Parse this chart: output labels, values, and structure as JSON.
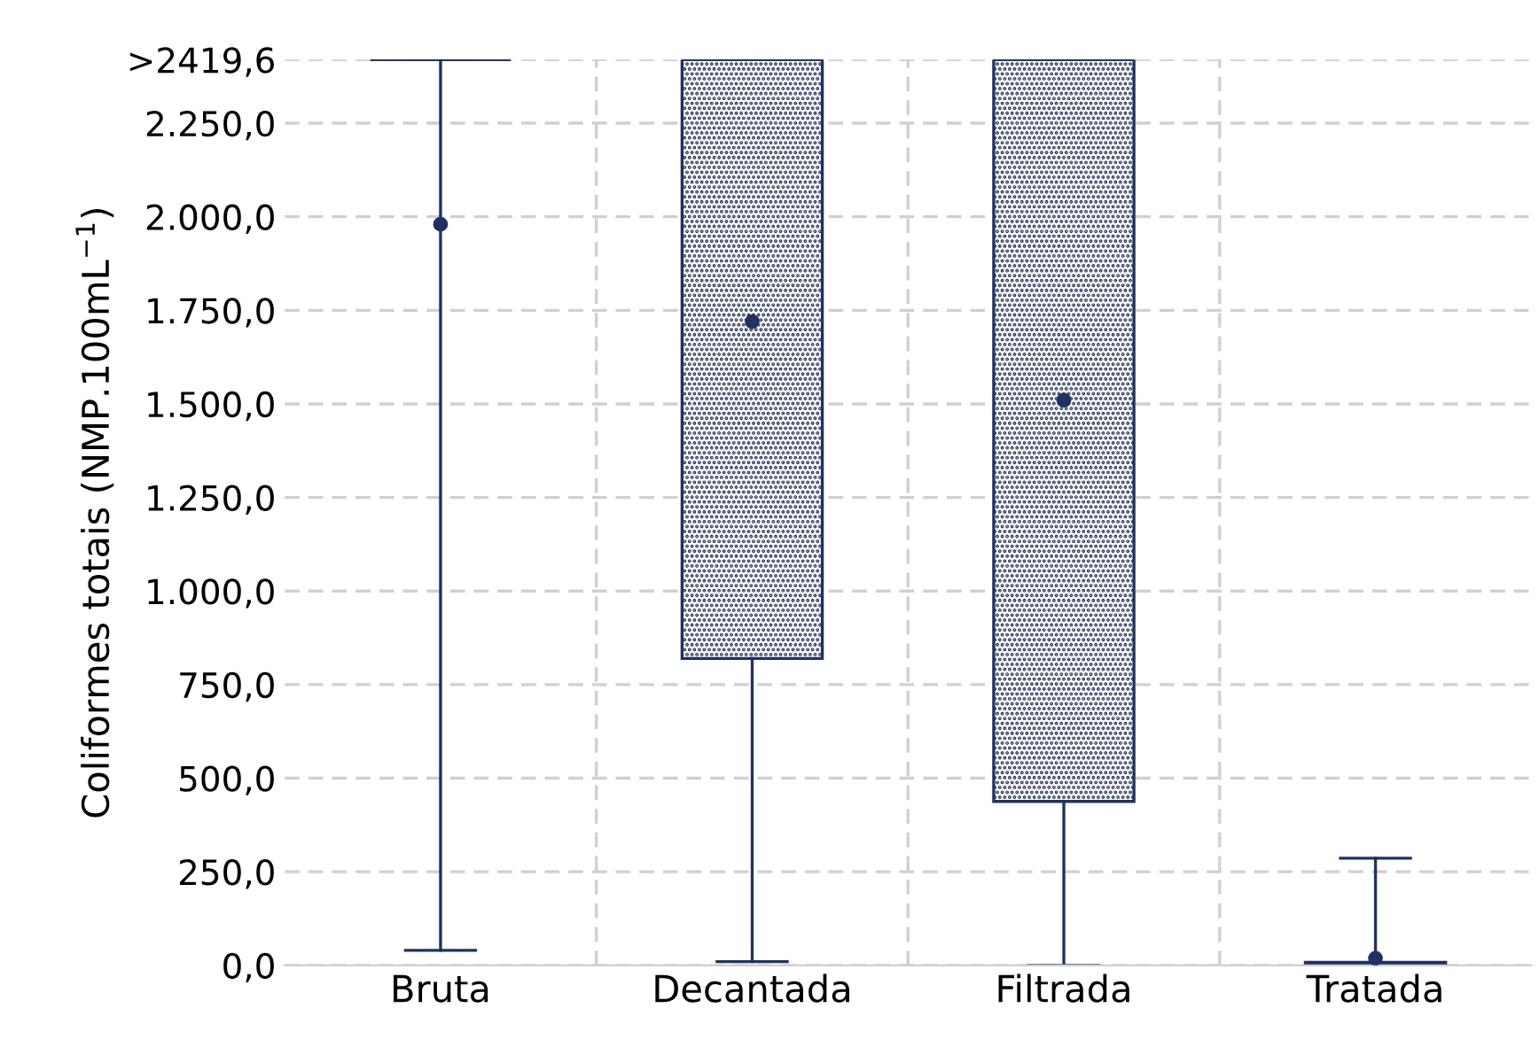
{
  "chart_data": {
    "type": "box",
    "ylabel": "Coliformes totais (NMP.100mL$^{−1}$)",
    "categories": [
      "Bruta",
      "Decantada",
      "Filtrada",
      "Tratada"
    ],
    "boxes": [
      {
        "low": 40,
        "q1": 2419.6,
        "median": 2419.6,
        "q3": 2419.6,
        "high": 2419.6,
        "mean": 1980
      },
      {
        "low": 10,
        "q1": 820,
        "median": 2419.6,
        "q3": 2419.6,
        "high": 2419.6,
        "mean": 1720
      },
      {
        "low": 0,
        "q1": 438,
        "median": 2419.6,
        "q3": 2419.6,
        "high": 2419.6,
        "mean": 1510
      },
      {
        "low": 0,
        "q1": 2,
        "median": 5,
        "q3": 8,
        "high": 286,
        "mean": 19
      }
    ],
    "color": "#1f3264",
    "ylim": [
      0,
      2419.6
    ],
    "yticks": [
      {
        "value": 0,
        "label": "0,0"
      },
      {
        "value": 250,
        "label": "250,0"
      },
      {
        "value": 500,
        "label": "500,0"
      },
      {
        "value": 750,
        "label": "750,0"
      },
      {
        "value": 1000,
        "label": "1.000,0"
      },
      {
        "value": 1250,
        "label": "1.250,0"
      },
      {
        "value": 1500,
        "label": "1.500,0"
      },
      {
        "value": 1750,
        "label": "1.750,0"
      },
      {
        "value": 2000,
        "label": "2.000,0"
      },
      {
        "value": 2250,
        "label": "2.250,0"
      },
      {
        "value": 2419.6,
        "label": ">2419,6"
      }
    ],
    "grid": true,
    "legend": false,
    "marker": "circle"
  }
}
